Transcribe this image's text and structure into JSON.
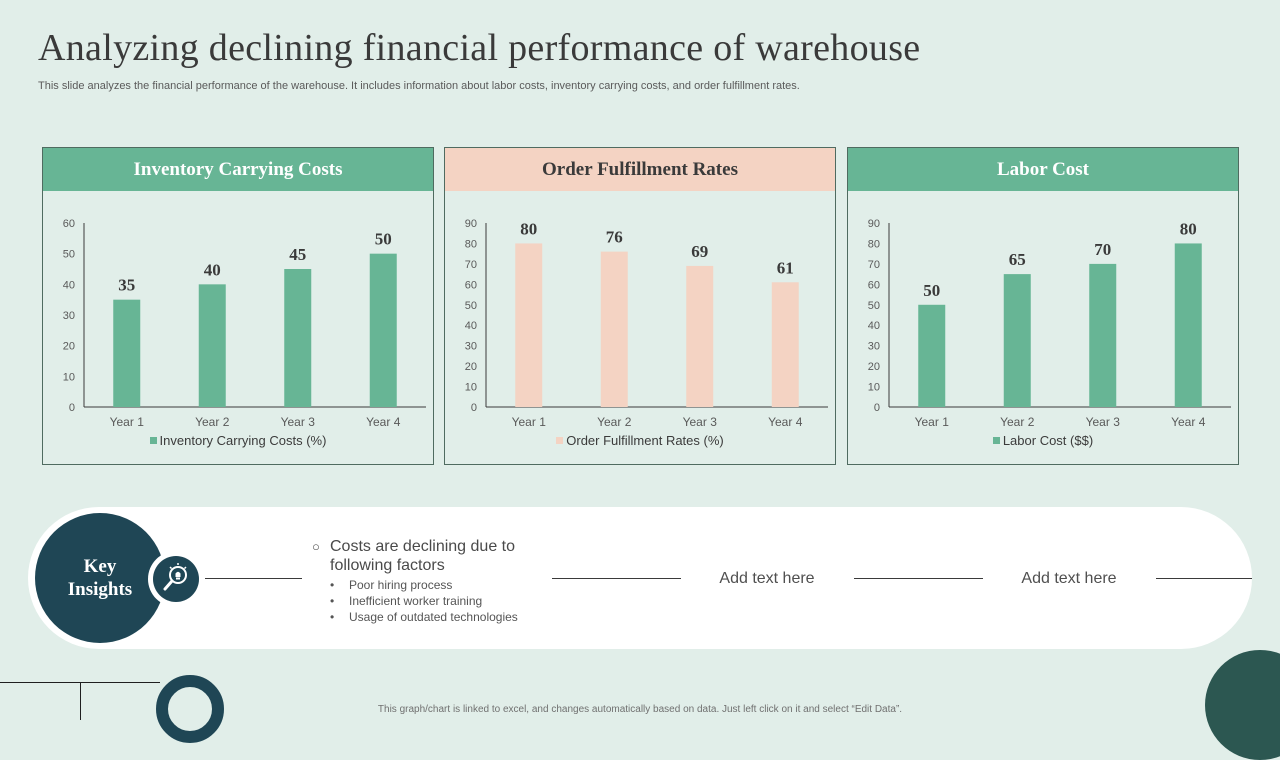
{
  "title": "Analyzing declining financial performance of warehouse",
  "subtitle": "This slide analyzes the financial performance of the warehouse. It includes information about labor costs, inventory carrying costs, and order fulfillment rates.",
  "colors": {
    "green": "#67b595",
    "peach": "#f4d3c3",
    "navy": "#1f4655",
    "background": "#e1eee9"
  },
  "chart_data": [
    {
      "type": "bar",
      "title": "Inventory Carrying Costs",
      "categories": [
        "Year 1",
        "Year 2",
        "Year 3",
        "Year 4"
      ],
      "series": [
        {
          "name": "Inventory Carrying Costs (%)",
          "values": [
            35,
            40,
            45,
            50
          ],
          "color": "#67b595"
        }
      ],
      "ylim": [
        0,
        60
      ],
      "yticks": [
        0,
        10,
        20,
        30,
        40,
        50,
        60
      ],
      "legend": "bottom"
    },
    {
      "type": "bar",
      "title": "Order Fulfillment Rates",
      "categories": [
        "Year 1",
        "Year 2",
        "Year 3",
        "Year 4"
      ],
      "series": [
        {
          "name": "Order Fulfillment Rates (%)",
          "values": [
            80,
            76,
            69,
            61
          ],
          "color": "#f4d3c3"
        }
      ],
      "ylim": [
        0,
        90
      ],
      "yticks": [
        0,
        10,
        20,
        30,
        40,
        50,
        60,
        70,
        80,
        90
      ],
      "legend": "bottom"
    },
    {
      "type": "bar",
      "title": "Labor Cost",
      "categories": [
        "Year 1",
        "Year 2",
        "Year 3",
        "Year 4"
      ],
      "series": [
        {
          "name": "Labor Cost ($$)",
          "values": [
            50,
            65,
            70,
            80
          ],
          "color": "#67b595"
        }
      ],
      "ylim": [
        0,
        90
      ],
      "yticks": [
        0,
        10,
        20,
        30,
        40,
        50,
        60,
        70,
        80,
        90
      ],
      "legend": "bottom"
    }
  ],
  "insights": {
    "heading_line1": "Key",
    "heading_line2": "Insights",
    "icon": "lightbulb-magnifier-icon",
    "main_point": "Costs are declining due to following factors",
    "factors": [
      "Poor hiring process",
      "Inefficient worker training",
      "Usage of outdated technologies"
    ],
    "placeholder_1": "Add text here",
    "placeholder_2": "Add text here"
  },
  "footnote": "This graph/chart is linked to excel, and changes automatically based on data. Just left click on it and select “Edit Data”."
}
